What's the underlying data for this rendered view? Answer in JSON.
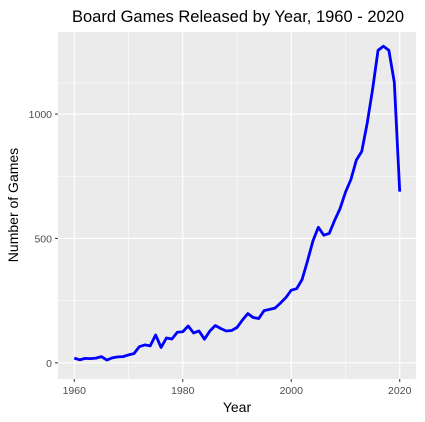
{
  "chart_data": {
    "type": "line",
    "title": "Board Games Released by Year,  1960 - 2020",
    "xlabel": "Year",
    "ylabel": "Number of Games",
    "xlim": [
      1957,
      2023
    ],
    "ylim": [
      -65,
      1330
    ],
    "x_ticks": [
      1960,
      1980,
      2000,
      2020
    ],
    "y_ticks": [
      0,
      500,
      1000
    ],
    "grid": true,
    "legend": "none",
    "colors": {
      "line": "#0000ff",
      "panel_background": "#ebebeb",
      "grid_major": "#ffffff",
      "tick_label": "#4d4d4d"
    },
    "series": [
      {
        "x": [
          1960,
          1961,
          1962,
          1963,
          1964,
          1965,
          1966,
          1967,
          1968,
          1969,
          1970,
          1971,
          1972,
          1973,
          1974,
          1975,
          1976,
          1977,
          1978,
          1979,
          1980,
          1981,
          1982,
          1983,
          1984,
          1985,
          1986,
          1987,
          1988,
          1989,
          1990,
          1991,
          1992,
          1993,
          1994,
          1995,
          1996,
          1997,
          1998,
          1999,
          2000,
          2001,
          2002,
          2003,
          2004,
          2005,
          2006,
          2007,
          2008,
          2009,
          2010,
          2011,
          2012,
          2013,
          2014,
          2015,
          2016,
          2017,
          2018,
          2019,
          2020
        ],
        "values": [
          19,
          12,
          18,
          17,
          19,
          25,
          11,
          20,
          24,
          25,
          32,
          37,
          65,
          72,
          68,
          112,
          62,
          100,
          96,
          123,
          125,
          148,
          120,
          128,
          95,
          128,
          150,
          138,
          128,
          130,
          142,
          172,
          198,
          182,
          178,
          210,
          215,
          220,
          240,
          262,
          292,
          298,
          335,
          410,
          490,
          545,
          513,
          520,
          573,
          620,
          686,
          737,
          815,
          850,
          963,
          1100,
          1256,
          1273,
          1256,
          1128,
          688
        ]
      }
    ]
  }
}
